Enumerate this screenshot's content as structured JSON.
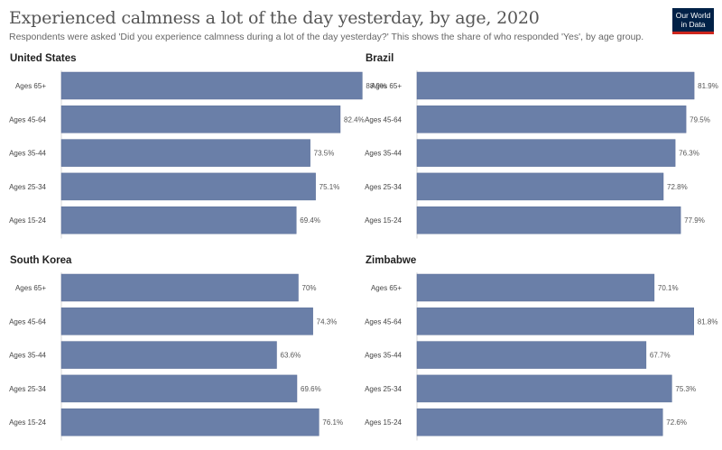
{
  "header": {
    "title": "Experienced calmness a lot of the day yesterday, by age, 2020",
    "subtitle": "Respondents were asked 'Did you experience calmness during a lot of the day yesterday?' This shows the share of who responded 'Yes', by age group.",
    "logo_line1": "Our World",
    "logo_line2": "in Data"
  },
  "colors": {
    "bar": "#6a7fa8",
    "bar_stroke": "#5a6f98",
    "axis": "#d9d9d9",
    "logo_bg": "#002147",
    "logo_accent": "#ce261e"
  },
  "chart_data": [
    {
      "type": "bar",
      "orientation": "horizontal",
      "title": "United States",
      "categories": [
        "Ages 65+",
        "Ages 45-64",
        "Ages 35-44",
        "Ages 25-34",
        "Ages 15-24"
      ],
      "values": [
        88.9,
        82.4,
        73.5,
        75.1,
        69.4
      ],
      "value_labels": [
        "88.9%",
        "82.4%",
        "73.5%",
        "75.1%",
        "69.4%"
      ],
      "xlim": [
        0,
        100
      ]
    },
    {
      "type": "bar",
      "orientation": "horizontal",
      "title": "Brazil",
      "categories": [
        "Ages 65+",
        "Ages 45-64",
        "Ages 35-44",
        "Ages 25-34",
        "Ages 15-24"
      ],
      "values": [
        81.9,
        79.5,
        76.3,
        72.8,
        77.9
      ],
      "value_labels": [
        "81.9%",
        "79.5%",
        "76.3%",
        "72.8%",
        "77.9%"
      ],
      "xlim": [
        0,
        100
      ]
    },
    {
      "type": "bar",
      "orientation": "horizontal",
      "title": "South Korea",
      "categories": [
        "Ages 65+",
        "Ages 45-64",
        "Ages 35-44",
        "Ages 25-34",
        "Ages 15-24"
      ],
      "values": [
        70,
        74.3,
        63.6,
        69.6,
        76.1
      ],
      "value_labels": [
        "70%",
        "74.3%",
        "63.6%",
        "69.6%",
        "76.1%"
      ],
      "xlim": [
        0,
        100
      ]
    },
    {
      "type": "bar",
      "orientation": "horizontal",
      "title": "Zimbabwe",
      "categories": [
        "Ages 65+",
        "Ages 45-64",
        "Ages 35-44",
        "Ages 25-34",
        "Ages 15-24"
      ],
      "values": [
        70.1,
        81.8,
        67.7,
        75.3,
        72.6
      ],
      "value_labels": [
        "70.1%",
        "81.8%",
        "67.7%",
        "75.3%",
        "72.6%"
      ],
      "xlim": [
        0,
        100
      ]
    }
  ]
}
